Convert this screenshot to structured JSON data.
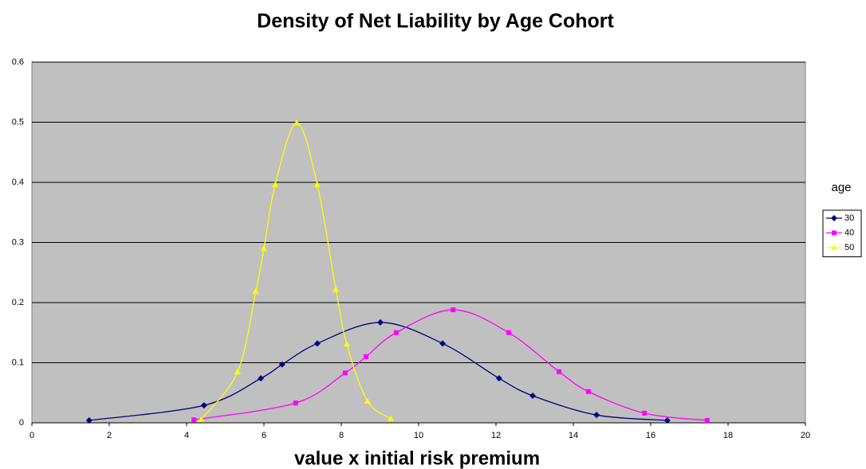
{
  "chart_data": {
    "type": "line",
    "smooth": true,
    "title": "Density of Net Liability by Age Cohort",
    "x_label": "value x initial risk premium",
    "legend_title": "age",
    "legend": "right",
    "grid": true,
    "xlim": [
      0,
      20
    ],
    "xticks": [
      0,
      2,
      4,
      6,
      8,
      10,
      12,
      14,
      16,
      18,
      20
    ],
    "ylim": [
      0,
      0.6
    ],
    "yticks": [
      0,
      0.1,
      0.2,
      0.3,
      0.4,
      0.5,
      0.6
    ],
    "series": [
      {
        "name": "30",
        "color": "#000080",
        "marker": "diamond",
        "x": [
          1.48,
          4.45,
          5.92,
          6.47,
          7.38,
          9.01,
          10.62,
          12.08,
          12.95,
          14.6,
          16.43
        ],
        "values": [
          0.004,
          0.029,
          0.074,
          0.097,
          0.132,
          0.167,
          0.132,
          0.074,
          0.045,
          0.013,
          0.004
        ]
      },
      {
        "name": "40",
        "color": "#ff00ff",
        "marker": "square",
        "x": [
          4.19,
          6.82,
          8.1,
          8.64,
          9.42,
          10.89,
          12.33,
          13.63,
          14.39,
          15.84,
          17.46
        ],
        "values": [
          0.005,
          0.033,
          0.083,
          0.11,
          0.15,
          0.188,
          0.15,
          0.085,
          0.052,
          0.016,
          0.004
        ]
      },
      {
        "name": "50",
        "color": "#ffff00",
        "marker": "triangle",
        "x": [
          4.37,
          5.32,
          5.79,
          6.0,
          6.29,
          6.85,
          7.38,
          7.86,
          8.14,
          8.68,
          9.28
        ],
        "values": [
          0.005,
          0.085,
          0.219,
          0.29,
          0.396,
          0.499,
          0.396,
          0.222,
          0.131,
          0.036,
          0.007
        ]
      }
    ]
  }
}
